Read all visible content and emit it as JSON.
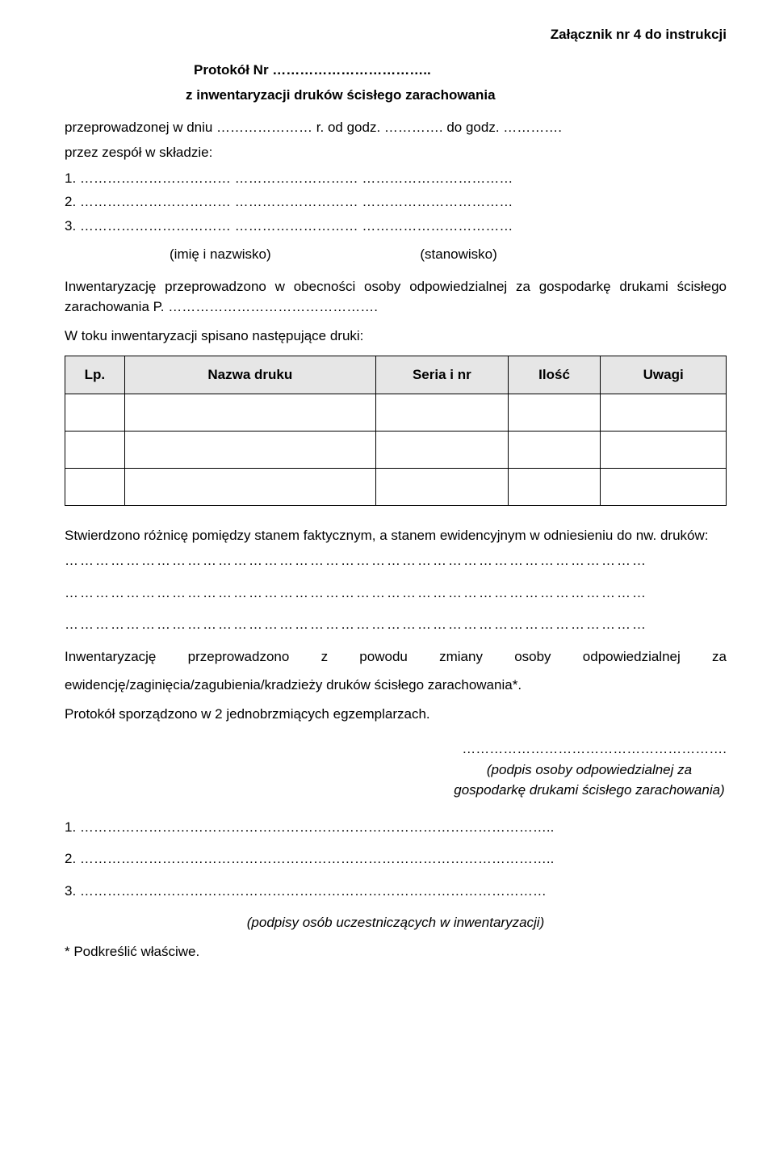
{
  "header": {
    "attachment": "Załącznik nr 4 do instrukcji"
  },
  "title": {
    "protocol": "Protokół Nr ……………………………..",
    "subtitle": "z inwentaryzacji druków ścisłego zarachowania"
  },
  "intro": {
    "line1": "przeprowadzonej w dniu ………………… r. od godz. …………. do godz. ………….",
    "line2": "przez zespół w składzie:",
    "n1": "1. …………………………… ……………………… ……………………………",
    "n2": "2. …………………………… ……………………… ……………………………",
    "n3": "3. …………………………… ……………………… ……………………………",
    "role_left": "(imię i nazwisko)",
    "role_right": "(stanowisko)"
  },
  "body": {
    "p1": "Inwentaryzację przeprowadzono w obecności osoby odpowiedzialnej za gospodarkę drukami ścisłego zarachowania P. ……………………………………….",
    "p2": "W toku inwentaryzacji spisano następujące druki:"
  },
  "table": {
    "headers": {
      "lp": "Lp.",
      "nazwa": "Nazwa druku",
      "seria": "Seria i nr",
      "ilosc": "Ilość",
      "uwagi": "Uwagi"
    }
  },
  "after_table": {
    "p1": "Stwierdzono różnicę pomiędzy stanem faktycznym, a stanem ewidencyjnym w odniesieniu do nw. druków:",
    "dots1": "……………………………………………………………………………………………………",
    "dots2": "……………………………………………………………………………………………………",
    "dots3": "……………………………………………………………………………………………………",
    "p2a": "Inwentaryzację",
    "p2b": "przeprowadzono",
    "p2c": "z",
    "p2d": "powodu",
    "p2e": "zmiany",
    "p2f": "osoby",
    "p2g": "odpowiedzialnej",
    "p2h": "za",
    "p2i": "ewidencję/zaginięcia/zagubienia/kradzieży druków ścisłego zarachowania*.",
    "p3": "Protokół sporządzono w 2 jednobrzmiących egzemplarzach."
  },
  "signatures": {
    "right_dots": "………………………………………………….",
    "right_desc": "(podpis osoby odpowiedzialnej za gospodarkę drukami ścisłego zarachowania)",
    "s1": "1. …………………………………………………………………………………………..",
    "s2": "2. …………………………………………………………………………………………..",
    "s3": "3. …………………………………………………………………………………………",
    "center_desc": "(podpisy osób uczestniczących w inwentaryzacji)"
  },
  "footnote": "* Podkreślić właściwe."
}
